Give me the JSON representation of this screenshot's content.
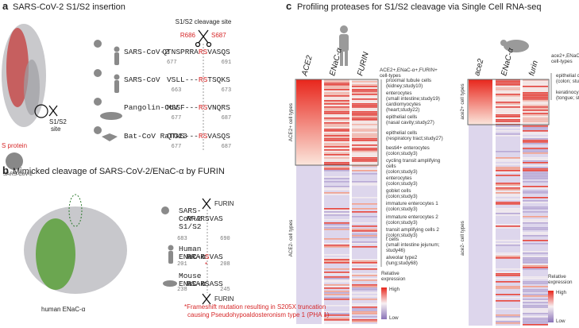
{
  "panel_a": {
    "label": "a",
    "title": "SARS-CoV-2 S1/S2 insertion",
    "site_label": "S1/S2 cleavage site",
    "residues": [
      "R686",
      "S687"
    ],
    "structure_label": [
      "S1/S2",
      "site"
    ],
    "protein_label": "S protein",
    "virus_label": "SARS-CoV-2",
    "sequences": [
      {
        "name": "SARS-CoV-2",
        "seq": [
          "QTNSPRRA",
          "RS",
          "VASQS"
        ],
        "start": 677,
        "end": 691
      },
      {
        "name": "SARS-CoV",
        "seq": [
          "VSLL---",
          "RS",
          "TSQKS"
        ],
        "start": 663,
        "end": 673
      },
      {
        "name": "Pangolin-CoV",
        "seq": [
          "MSSF---",
          "RS",
          "VNQRS"
        ],
        "start": 677,
        "end": 687
      },
      {
        "name": "Bat-CoV RaTG13",
        "seq": [
          "QTNS---",
          "RS",
          "VASQS"
        ],
        "start": 677,
        "end": 687
      }
    ]
  },
  "panel_b": {
    "label": "b",
    "title": "Mimicked cleavage of SARS-CoV-2/ENaC-α by FURIN",
    "structure_label": "human ENaC-α",
    "enzyme": "FURIN",
    "mutation_mark": "*",
    "sequences": [
      {
        "name": [
          "SARS-",
          "CoV-2",
          "S1/S2"
        ],
        "seq": [
          "RRAR",
          "S",
          "VAS"
        ],
        "highlighted": false,
        "start": 683,
        "end": 690
      },
      {
        "name": [
          "Human",
          "ENaC-α"
        ],
        "seq": [
          "RRAR",
          "S",
          "VAS"
        ],
        "highlighted": true,
        "start": 201,
        "end": 208
      },
      {
        "name": [
          "Mouse",
          "ENaC-α"
        ],
        "seq": [
          "RSAR",
          "S",
          "ASS"
        ],
        "highlighted": false,
        "start": 238,
        "end": 245
      }
    ],
    "footnote": [
      "*Frameshift mutation resulting in S205X truncation",
      "causing Pseudohypoaldosteronism type 1 (PHA 1)"
    ]
  },
  "panel_c": {
    "label": "c",
    "title": "Profiling proteases for S1/S2 cleavage via Single Cell RNA-seq",
    "human": {
      "columns": [
        "ACE2",
        "ENaC-α",
        "FURIN"
      ],
      "header": [
        "ACE2+,ENaC-α+,FURIN+",
        "cell-types"
      ],
      "group_labels": [
        "ACE2+ cell types",
        "ACE2- cell types"
      ],
      "cell_types": [
        [
          "proximal tubule cells",
          "(kidney;study10)"
        ],
        [
          "enterocytes",
          "(small intestine;study19)"
        ],
        [
          "cardiomyocytes",
          "(heart;study22)"
        ],
        [
          "epithelial cells",
          "(nasal cavity;study27)"
        ],
        [
          "epithelial cells",
          "(respiratory tract;study27)"
        ],
        [
          "besti4+ enterocytes",
          "(colon;study3)"
        ],
        [
          "cycling transit amplifying",
          "cells",
          "(colon;study3)"
        ],
        [
          "enterocytes",
          "(colon;study3)"
        ],
        [
          "goblet cells",
          "(colon;study3)"
        ],
        [
          "immature enterocytes 1",
          "(colon;study3)"
        ],
        [
          "immature enterocytes 2",
          "(colon;study3)"
        ],
        [
          "transit amplifying cells 2",
          "(colon;study3)"
        ],
        [
          "t cells",
          "(small intestine jejunum;",
          "study46)"
        ],
        [
          "alveolar type2",
          "(lung;study68)"
        ]
      ]
    },
    "mouse": {
      "columns": [
        "ace2",
        "ENaC-α",
        "furin"
      ],
      "header": [
        "ace2+,ENaC-α+,furin+",
        "cell-types"
      ],
      "group_labels": [
        "ace2+ cell types",
        "ace2- cell types"
      ],
      "cell_types": [
        [
          "epithelial cells",
          "(colon; study2)"
        ],
        [
          "keratinocytes",
          "(tongue; study2)"
        ]
      ]
    },
    "legend": {
      "title": [
        "Relative",
        "expression"
      ],
      "high": "High",
      "low": "Low"
    }
  }
}
